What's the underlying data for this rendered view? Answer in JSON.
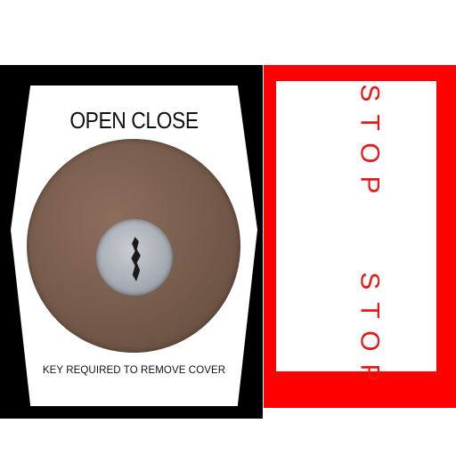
{
  "left_plate": {
    "top_label": "OPEN CLOSE",
    "bottom_label": "KEY REQUIRED TO REMOVE COVER"
  },
  "right_panel": {
    "label_top": "STOP",
    "label_bottom": "STOP"
  },
  "colors": {
    "frame_left": "#000000",
    "plate": "#ffffff",
    "frame_right": "#ff0000",
    "stop_text": "#e61919",
    "cover_bronze": "#7a5e4d",
    "cylinder_silver": "#a9adb5"
  },
  "icons": [
    "lock-cylinder-icon",
    "keyway-icon"
  ]
}
